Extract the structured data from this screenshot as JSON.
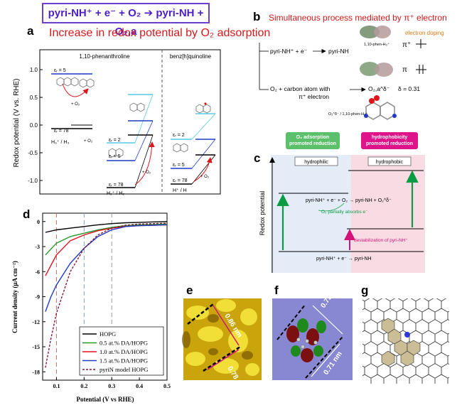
{
  "header_reaction": "pyri-NH⁺ + e⁻ + O₂ ➔ pyri-NH + O₂,a",
  "panel_a": {
    "label": "a",
    "title": "Increase in redox potential by O₂ adsorption",
    "col1_title": "1,10-phenanthroline",
    "col2_title": "benz[h]quinoline",
    "ylabel": "Redox potential (V vs. RHE)",
    "yticks": [
      "1.0",
      "0.5",
      "0.0",
      "-0.5",
      "-1.0"
    ],
    "eps5": "εᵣ = 5",
    "eps78": "εᵣ = 78",
    "eps2": "εᵣ = 2",
    "plus_o2": "+ O₂",
    "h3_label": "H₃⁺ / H₃",
    "h2_label": "H₂⁺ / H₂",
    "h_label": "H⁺ / H"
  },
  "panel_b": {
    "label": "b",
    "title": "Simultaneous process mediated by π⁺ electron",
    "rxn1_left": "pyri-NH⁺ + e⁻",
    "rxn1_right": "pyri-NH",
    "mol1": "1,10-phen-H₃⁺",
    "doping": "electron doping",
    "pi_plus": "π⁺",
    "pi": "π",
    "rxn2_left": "O₂ +   carbon atom with",
    "rxn2_left2": "π⁺ electron",
    "rxn2_right": "O₂,a^δ⁻",
    "delta": "δ = 0.31",
    "mol2": "O₂^δ⁻ / 1,10-phen-H₃⁺"
  },
  "panel_c": {
    "label": "c",
    "badge_green": "O₂ adsorption promoted reduction",
    "badge_pink": "hydrophobicity promoted reduction",
    "hydrophilic": "hydrophilic",
    "hydrophobic": "hydrophobic",
    "ylabel": "Redox potential",
    "rxn_top": "pyri-NH⁺ + e⁻ + O₂ → pyri-NH + O₂^δ⁻",
    "o2_partial": "O₂ partially absorbs e⁻",
    "destab": "destabilization of pyri-NH⁺",
    "rxn_bottom": "pyri-NH⁺ + e⁻ → pyri-NH"
  },
  "panel_d": {
    "label": "d",
    "ylabel": "Current density (μA cm⁻²)",
    "xlabel": "Potential (V vs RHE)",
    "legend": [
      "HOPG",
      "0.5 at.% DA/HOPG",
      "1.0 at.% DA/HOPG",
      "1.5 at.% DA/HOPG",
      "pyriN model HOPG"
    ],
    "colors": [
      "#000000",
      "#1f9a2a",
      "#e0141c",
      "#1f3ac8",
      "#8b1538"
    ]
  },
  "panel_e": {
    "label": "e",
    "dim1": "0.86 nm",
    "dim2": "0.78 nm"
  },
  "panel_f": {
    "label": "f",
    "dim1": "0.73 nm",
    "dim2": "0.71 nm"
  },
  "panel_g": {
    "label": "g"
  },
  "chart_data": {
    "type": "line",
    "xlabel": "Potential (V vs RHE)",
    "ylabel": "Current density (μA cm⁻²)",
    "xlim": [
      0.05,
      0.5
    ],
    "ylim": [
      -19,
      1
    ],
    "xticks": [
      0.1,
      0.2,
      0.3,
      0.4,
      0.5
    ],
    "yticks": [
      0,
      -3,
      -6,
      -9,
      -12,
      -15,
      -18
    ],
    "vlines": [
      0.1,
      0.2,
      0.3
    ],
    "series": [
      {
        "name": "HOPG",
        "color": "#000000",
        "dash": false,
        "x": [
          0.06,
          0.1,
          0.15,
          0.2,
          0.25,
          0.3,
          0.35,
          0.4,
          0.45,
          0.5
        ],
        "y": [
          -1.3,
          -1.0,
          -0.8,
          -0.6,
          -0.4,
          -0.25,
          -0.15,
          -0.1,
          -0.05,
          0.0
        ]
      },
      {
        "name": "0.5 at.% DA/HOPG",
        "color": "#1f9a2a",
        "dash": false,
        "x": [
          0.06,
          0.1,
          0.15,
          0.2,
          0.25,
          0.3,
          0.35,
          0.4,
          0.45,
          0.5
        ],
        "y": [
          -4.0,
          -2.6,
          -1.8,
          -1.4,
          -1.0,
          -0.7,
          -0.5,
          -0.4,
          -0.35,
          -0.3
        ]
      },
      {
        "name": "1.0 at.% DA/HOPG",
        "color": "#e0141c",
        "dash": false,
        "x": [
          0.06,
          0.1,
          0.15,
          0.2,
          0.25,
          0.3,
          0.35,
          0.4,
          0.45,
          0.5
        ],
        "y": [
          -6.5,
          -4.0,
          -2.3,
          -1.6,
          -1.1,
          -0.8,
          -0.6,
          -0.5,
          -0.45,
          -0.4
        ]
      },
      {
        "name": "1.5 at.% DA/HOPG",
        "color": "#1f3ac8",
        "dash": false,
        "x": [
          0.06,
          0.08,
          0.1,
          0.15,
          0.2,
          0.25,
          0.3,
          0.35,
          0.4,
          0.45,
          0.5
        ],
        "y": [
          -10.8,
          -9.0,
          -7.6,
          -5.0,
          -3.2,
          -1.8,
          -1.0,
          -0.6,
          -0.5,
          -0.45,
          -0.4
        ]
      },
      {
        "name": "pyriN model HOPG",
        "color": "#8b1538",
        "dash": true,
        "x": [
          0.06,
          0.08,
          0.1,
          0.15,
          0.2,
          0.25,
          0.3,
          0.35,
          0.4,
          0.45,
          0.5
        ],
        "y": [
          -17.5,
          -14.0,
          -11.0,
          -6.0,
          -3.2,
          -1.6,
          -0.8,
          -0.45,
          -0.3,
          -0.25,
          -0.2
        ]
      }
    ]
  }
}
